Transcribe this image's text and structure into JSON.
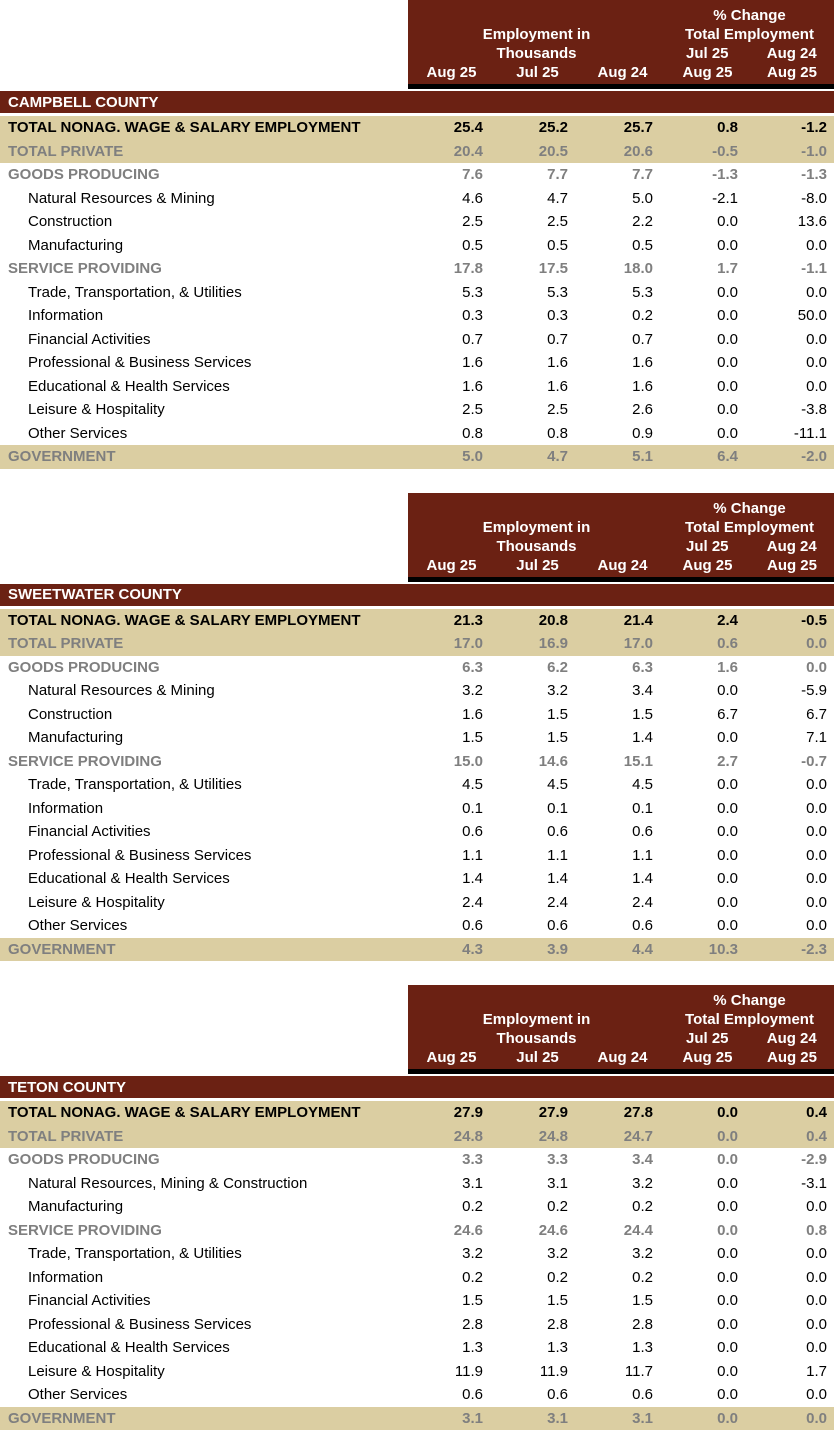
{
  "colors": {
    "maroon": "#6B2113",
    "tan": "#DBCEA2",
    "gray_text": "#7F7F7F",
    "header_text": "#FFFFFF",
    "body_text": "#000000"
  },
  "header": {
    "pct_change_label": "% Change",
    "employment_in_label": "Employment in",
    "thousands_label": "Thousands",
    "total_employment_label": "Total Employment",
    "change_col_tops": [
      "Jul 25",
      "Aug 24"
    ],
    "bottom_columns": [
      "Aug 25",
      "Jul 25",
      "Aug 24",
      "Aug 25",
      "Aug 25"
    ]
  },
  "sections": [
    {
      "county": "CAMPBELL COUNTY",
      "rows": [
        {
          "label": "TOTAL NONAG. WAGE & SALARY EMPLOYMENT",
          "style": "total-black",
          "values": [
            "25.4",
            "25.2",
            "25.7",
            "0.8",
            "-1.2"
          ]
        },
        {
          "label": "TOTAL PRIVATE",
          "style": "total-gray",
          "values": [
            "20.4",
            "20.5",
            "20.6",
            "-0.5",
            "-1.0"
          ]
        },
        {
          "label": "GOODS PRODUCING",
          "style": "group",
          "values": [
            "7.6",
            "7.7",
            "7.7",
            "-1.3",
            "-1.3"
          ]
        },
        {
          "label": "Natural Resources & Mining",
          "style": "item",
          "values": [
            "4.6",
            "4.7",
            "5.0",
            "-2.1",
            "-8.0"
          ]
        },
        {
          "label": "Construction",
          "style": "item",
          "values": [
            "2.5",
            "2.5",
            "2.2",
            "0.0",
            "13.6"
          ]
        },
        {
          "label": "Manufacturing",
          "style": "item",
          "values": [
            "0.5",
            "0.5",
            "0.5",
            "0.0",
            "0.0"
          ]
        },
        {
          "label": "SERVICE PROVIDING",
          "style": "group",
          "values": [
            "17.8",
            "17.5",
            "18.0",
            "1.7",
            "-1.1"
          ]
        },
        {
          "label": "Trade, Transportation, & Utilities",
          "style": "item",
          "values": [
            "5.3",
            "5.3",
            "5.3",
            "0.0",
            "0.0"
          ]
        },
        {
          "label": "Information",
          "style": "item",
          "values": [
            "0.3",
            "0.3",
            "0.2",
            "0.0",
            "50.0"
          ]
        },
        {
          "label": "Financial Activities",
          "style": "item",
          "values": [
            "0.7",
            "0.7",
            "0.7",
            "0.0",
            "0.0"
          ]
        },
        {
          "label": "Professional & Business Services",
          "style": "item",
          "values": [
            "1.6",
            "1.6",
            "1.6",
            "0.0",
            "0.0"
          ]
        },
        {
          "label": "Educational & Health Services",
          "style": "item",
          "values": [
            "1.6",
            "1.6",
            "1.6",
            "0.0",
            "0.0"
          ]
        },
        {
          "label": "Leisure & Hospitality",
          "style": "item",
          "values": [
            "2.5",
            "2.5",
            "2.6",
            "0.0",
            "-3.8"
          ]
        },
        {
          "label": "Other Services",
          "style": "item",
          "values": [
            "0.8",
            "0.8",
            "0.9",
            "0.0",
            "-11.1"
          ]
        },
        {
          "label": "GOVERNMENT",
          "style": "total-gray",
          "values": [
            "5.0",
            "4.7",
            "5.1",
            "6.4",
            "-2.0"
          ]
        }
      ]
    },
    {
      "county": "SWEETWATER COUNTY",
      "rows": [
        {
          "label": "TOTAL NONAG. WAGE & SALARY EMPLOYMENT",
          "style": "total-black",
          "values": [
            "21.3",
            "20.8",
            "21.4",
            "2.4",
            "-0.5"
          ]
        },
        {
          "label": "TOTAL PRIVATE",
          "style": "total-gray",
          "values": [
            "17.0",
            "16.9",
            "17.0",
            "0.6",
            "0.0"
          ]
        },
        {
          "label": "GOODS PRODUCING",
          "style": "group",
          "values": [
            "6.3",
            "6.2",
            "6.3",
            "1.6",
            "0.0"
          ]
        },
        {
          "label": "Natural Resources & Mining",
          "style": "item",
          "values": [
            "3.2",
            "3.2",
            "3.4",
            "0.0",
            "-5.9"
          ]
        },
        {
          "label": "Construction",
          "style": "item",
          "values": [
            "1.6",
            "1.5",
            "1.5",
            "6.7",
            "6.7"
          ]
        },
        {
          "label": "Manufacturing",
          "style": "item",
          "values": [
            "1.5",
            "1.5",
            "1.4",
            "0.0",
            "7.1"
          ]
        },
        {
          "label": "SERVICE PROVIDING",
          "style": "group",
          "values": [
            "15.0",
            "14.6",
            "15.1",
            "2.7",
            "-0.7"
          ]
        },
        {
          "label": "Trade, Transportation, & Utilities",
          "style": "item",
          "values": [
            "4.5",
            "4.5",
            "4.5",
            "0.0",
            "0.0"
          ]
        },
        {
          "label": "Information",
          "style": "item",
          "values": [
            "0.1",
            "0.1",
            "0.1",
            "0.0",
            "0.0"
          ]
        },
        {
          "label": "Financial Activities",
          "style": "item",
          "values": [
            "0.6",
            "0.6",
            "0.6",
            "0.0",
            "0.0"
          ]
        },
        {
          "label": "Professional & Business Services",
          "style": "item",
          "values": [
            "1.1",
            "1.1",
            "1.1",
            "0.0",
            "0.0"
          ]
        },
        {
          "label": "Educational & Health Services",
          "style": "item",
          "values": [
            "1.4",
            "1.4",
            "1.4",
            "0.0",
            "0.0"
          ]
        },
        {
          "label": "Leisure & Hospitality",
          "style": "item",
          "values": [
            "2.4",
            "2.4",
            "2.4",
            "0.0",
            "0.0"
          ]
        },
        {
          "label": "Other Services",
          "style": "item",
          "values": [
            "0.6",
            "0.6",
            "0.6",
            "0.0",
            "0.0"
          ]
        },
        {
          "label": "GOVERNMENT",
          "style": "total-gray",
          "values": [
            "4.3",
            "3.9",
            "4.4",
            "10.3",
            "-2.3"
          ]
        }
      ]
    },
    {
      "county": "TETON COUNTY",
      "rows": [
        {
          "label": "TOTAL NONAG. WAGE & SALARY EMPLOYMENT",
          "style": "total-black",
          "values": [
            "27.9",
            "27.9",
            "27.8",
            "0.0",
            "0.4"
          ]
        },
        {
          "label": "TOTAL PRIVATE",
          "style": "total-gray",
          "values": [
            "24.8",
            "24.8",
            "24.7",
            "0.0",
            "0.4"
          ]
        },
        {
          "label": "GOODS PRODUCING",
          "style": "group",
          "values": [
            "3.3",
            "3.3",
            "3.4",
            "0.0",
            "-2.9"
          ]
        },
        {
          "label": "Natural Resources, Mining & Construction",
          "style": "item",
          "values": [
            "3.1",
            "3.1",
            "3.2",
            "0.0",
            "-3.1"
          ]
        },
        {
          "label": "Manufacturing",
          "style": "item",
          "values": [
            "0.2",
            "0.2",
            "0.2",
            "0.0",
            "0.0"
          ]
        },
        {
          "label": "SERVICE PROVIDING",
          "style": "group",
          "values": [
            "24.6",
            "24.6",
            "24.4",
            "0.0",
            "0.8"
          ]
        },
        {
          "label": "Trade, Transportation, & Utilities",
          "style": "item",
          "values": [
            "3.2",
            "3.2",
            "3.2",
            "0.0",
            "0.0"
          ]
        },
        {
          "label": "Information",
          "style": "item",
          "values": [
            "0.2",
            "0.2",
            "0.2",
            "0.0",
            "0.0"
          ]
        },
        {
          "label": "Financial Activities",
          "style": "item",
          "values": [
            "1.5",
            "1.5",
            "1.5",
            "0.0",
            "0.0"
          ]
        },
        {
          "label": "Professional & Business Services",
          "style": "item",
          "values": [
            "2.8",
            "2.8",
            "2.8",
            "0.0",
            "0.0"
          ]
        },
        {
          "label": "Educational & Health Services",
          "style": "item",
          "values": [
            "1.3",
            "1.3",
            "1.3",
            "0.0",
            "0.0"
          ]
        },
        {
          "label": "Leisure & Hospitality",
          "style": "item",
          "values": [
            "11.9",
            "11.9",
            "11.7",
            "0.0",
            "1.7"
          ]
        },
        {
          "label": "Other Services",
          "style": "item",
          "values": [
            "0.6",
            "0.6",
            "0.6",
            "0.0",
            "0.0"
          ]
        },
        {
          "label": "GOVERNMENT",
          "style": "total-gray",
          "values": [
            "3.1",
            "3.1",
            "3.1",
            "0.0",
            "0.0"
          ]
        }
      ]
    }
  ]
}
